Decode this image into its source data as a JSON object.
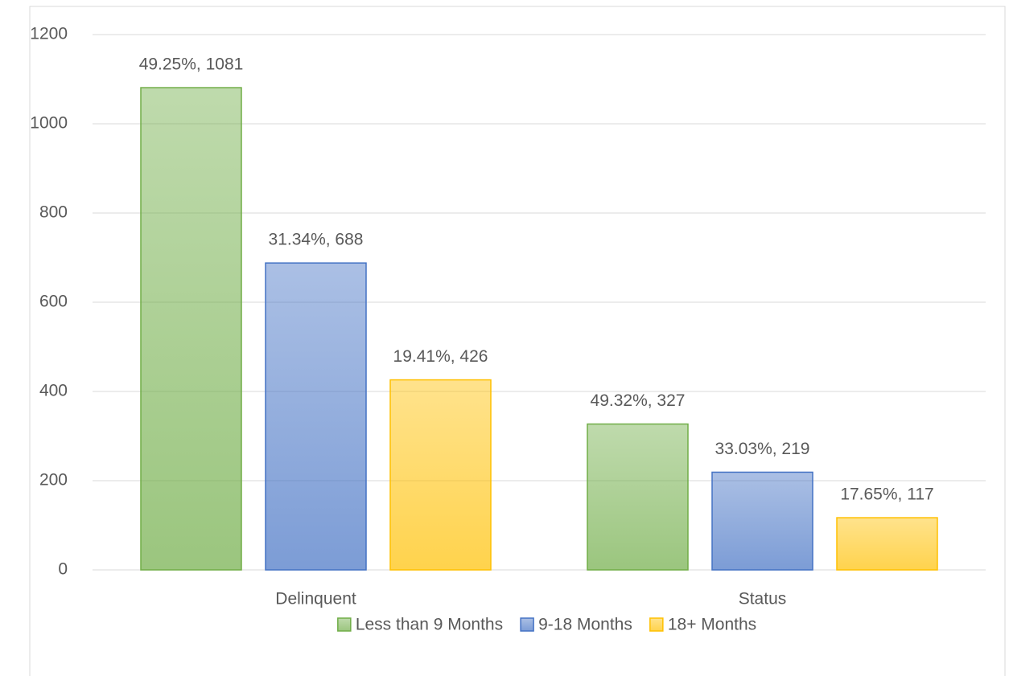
{
  "chart_data": {
    "type": "bar",
    "categories": [
      "Delinquent",
      "Status"
    ],
    "series": [
      {
        "name": "Less than 9 Months",
        "color": "#70ad47",
        "values": [
          1081,
          327
        ],
        "value_labels": [
          "49.25%, 1081",
          "49.32%, 327"
        ]
      },
      {
        "name": "9-18 Months",
        "color": "#4472c4",
        "values": [
          688,
          219
        ],
        "value_labels": [
          "31.34%, 688",
          "33.03%, 219"
        ]
      },
      {
        "name": "18+ Months",
        "color": "#ffc000",
        "values": [
          426,
          117
        ],
        "value_labels": [
          "19.41%, 426",
          "17.65%, 117"
        ]
      }
    ],
    "ylim": [
      0,
      1200
    ],
    "yticks": [
      0,
      200,
      400,
      600,
      800,
      1000,
      1200
    ],
    "grid": true,
    "legend": "bottom"
  }
}
